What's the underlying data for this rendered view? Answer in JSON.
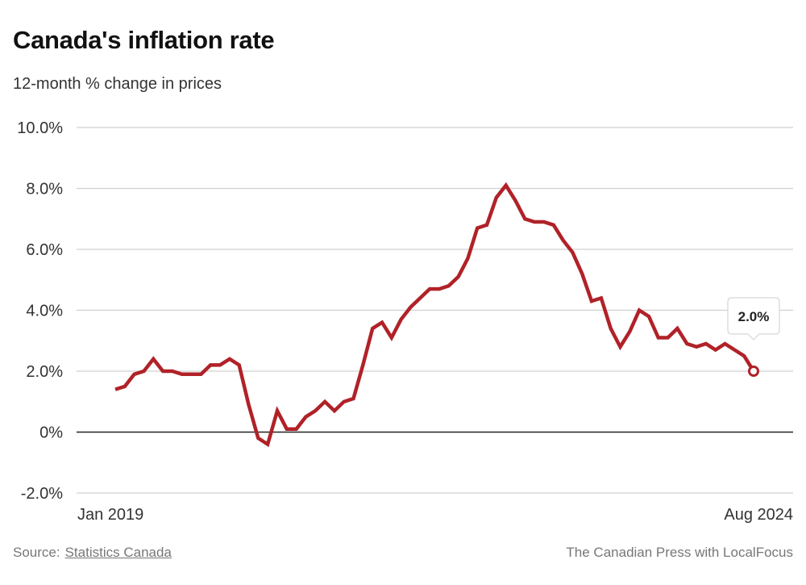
{
  "header": {
    "title": "Canada's inflation rate",
    "subtitle": "12-month % change in prices"
  },
  "footer": {
    "source_prefix": "Source:",
    "source_link": "Statistics Canada",
    "credit": "The Canadian Press with LocalFocus"
  },
  "colors": {
    "line": "#b02228",
    "grid": "#d0d0d0",
    "zero_line": "#222222"
  },
  "chart_data": {
    "type": "line",
    "title": "Canada's inflation rate",
    "subtitle": "12-month % change in prices",
    "xlabel": "",
    "ylabel": "",
    "ylim": [
      -2,
      10
    ],
    "yticks": [
      10,
      8,
      6,
      4,
      2,
      0,
      -2
    ],
    "ytick_labels": [
      "10.0%",
      "8.0%",
      "6.0%",
      "4.0%",
      "2.0%",
      "0%",
      "-2.0%"
    ],
    "xtick_labels": [
      "Jan 2019",
      "Aug 2024"
    ],
    "x_start": "Jan 2019",
    "x_end": "Aug 2024",
    "grid": true,
    "legend": "none",
    "annotation": {
      "label": "2.0%",
      "at": "Aug 2024",
      "value": 2.0
    },
    "series": [
      {
        "name": "12-month % change in prices",
        "x": [
          "Jan 2019",
          "Feb 2019",
          "Mar 2019",
          "Apr 2019",
          "May 2019",
          "Jun 2019",
          "Jul 2019",
          "Aug 2019",
          "Sep 2019",
          "Oct 2019",
          "Nov 2019",
          "Dec 2019",
          "Jan 2020",
          "Feb 2020",
          "Mar 2020",
          "Apr 2020",
          "May 2020",
          "Jun 2020",
          "Jul 2020",
          "Aug 2020",
          "Sep 2020",
          "Oct 2020",
          "Nov 2020",
          "Dec 2020",
          "Jan 2021",
          "Feb 2021",
          "Mar 2021",
          "Apr 2021",
          "May 2021",
          "Jun 2021",
          "Jul 2021",
          "Aug 2021",
          "Sep 2021",
          "Oct 2021",
          "Nov 2021",
          "Dec 2021",
          "Jan 2022",
          "Feb 2022",
          "Mar 2022",
          "Apr 2022",
          "May 2022",
          "Jun 2022",
          "Jul 2022",
          "Aug 2022",
          "Sep 2022",
          "Oct 2022",
          "Nov 2022",
          "Dec 2022",
          "Jan 2023",
          "Feb 2023",
          "Mar 2023",
          "Apr 2023",
          "May 2023",
          "Jun 2023",
          "Jul 2023",
          "Aug 2023",
          "Sep 2023",
          "Oct 2023",
          "Nov 2023",
          "Dec 2023",
          "Jan 2024",
          "Feb 2024",
          "Mar 2024",
          "Apr 2024",
          "May 2024",
          "Jun 2024",
          "Jul 2024",
          "Aug 2024"
        ],
        "values": [
          1.4,
          1.5,
          1.9,
          2.0,
          2.4,
          2.0,
          2.0,
          1.9,
          1.9,
          1.9,
          2.2,
          2.2,
          2.4,
          2.2,
          0.9,
          -0.2,
          -0.4,
          0.7,
          0.1,
          0.1,
          0.5,
          0.7,
          1.0,
          0.7,
          1.0,
          1.1,
          2.2,
          3.4,
          3.6,
          3.1,
          3.7,
          4.1,
          4.4,
          4.7,
          4.7,
          4.8,
          5.1,
          5.7,
          6.7,
          6.8,
          7.7,
          8.1,
          7.6,
          7.0,
          6.9,
          6.9,
          6.8,
          6.3,
          5.9,
          5.2,
          4.3,
          4.4,
          3.4,
          2.8,
          3.3,
          4.0,
          3.8,
          3.1,
          3.1,
          3.4,
          2.9,
          2.8,
          2.9,
          2.7,
          2.9,
          2.7,
          2.5,
          2.0
        ]
      }
    ]
  }
}
